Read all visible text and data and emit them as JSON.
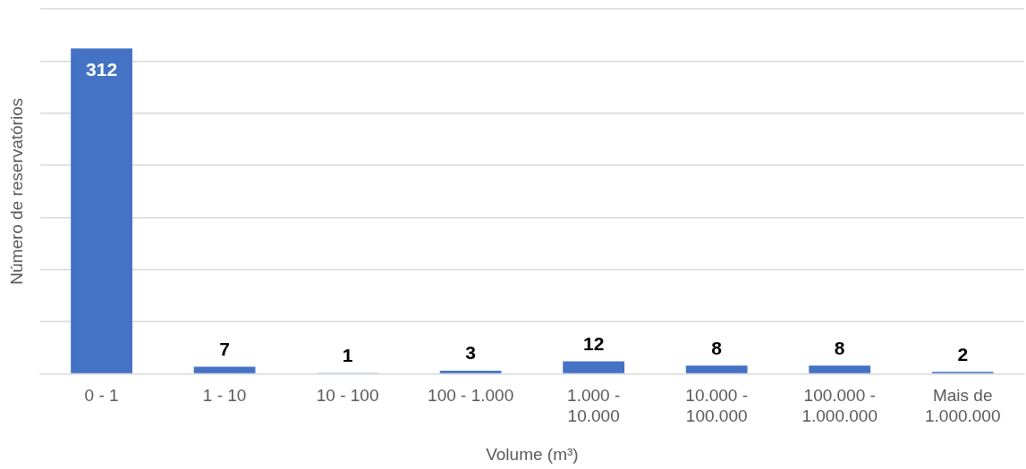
{
  "chart_data": {
    "type": "bar",
    "xlabel": "Volume (m³)",
    "ylabel": "Número de reservatórios",
    "categories": [
      "0 - 1",
      "1 - 10",
      "10 - 100",
      "100 - 1.000",
      "1.000 - 10.000",
      "10.000 - 100.000",
      "100.000 - 1.000.000",
      "Mais de 1.000.000"
    ],
    "values": [
      312,
      7,
      1,
      3,
      12,
      8,
      8,
      2
    ],
    "color": "#4472c4",
    "ylim": [
      0,
      350
    ],
    "yticks": [
      {
        "value": 0,
        "label": null
      },
      {
        "value": 50,
        "label": null
      },
      {
        "value": 100,
        "label": null
      },
      {
        "value": 150,
        "label": null
      },
      {
        "value": 200,
        "label": null
      },
      {
        "value": 250,
        "label": null
      },
      {
        "value": 300,
        "label": null
      },
      {
        "value": 350,
        "label": null
      }
    ],
    "grid": "y",
    "tick_labels": "x",
    "data_labels": true
  }
}
